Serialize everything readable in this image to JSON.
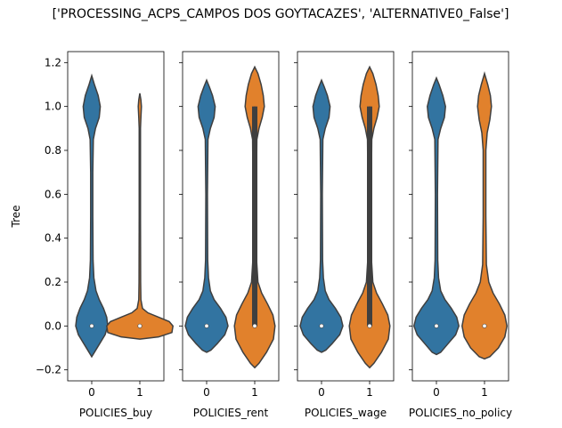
{
  "chart_data": {
    "type": "violin",
    "title": "['PROCESSING_ACPS_CAMPOS DOS GOYTACAZES', 'ALTERNATIVE0_False']",
    "ylabel": "Tree",
    "ylim": [
      -0.25,
      1.25
    ],
    "yticks": [
      -0.2,
      0.0,
      0.2,
      0.4,
      0.6,
      0.8,
      1.0,
      1.2
    ],
    "ytick_labels": [
      "−0.2",
      "0.0",
      "0.2",
      "0.4",
      "0.6",
      "0.8",
      "1.0",
      "1.2"
    ],
    "categories": [
      "0",
      "1"
    ],
    "colors": {
      "0": "#3274a1",
      "1": "#e1812c",
      "edge": "#3f3f3f"
    },
    "panels": [
      {
        "xlabel": "POLICIES_buy",
        "violins": [
          {
            "category": "0",
            "median": 0.0,
            "q1": 0.0,
            "q3": 0.0,
            "whisker_low": 0.0,
            "whisker_high": 0.0,
            "profile": [
              [
                -0.14,
                0.0
              ],
              [
                -0.12,
                0.05
              ],
              [
                -0.08,
                0.15
              ],
              [
                -0.04,
                0.25
              ],
              [
                0.0,
                0.3
              ],
              [
                0.04,
                0.28
              ],
              [
                0.08,
                0.22
              ],
              [
                0.12,
                0.14
              ],
              [
                0.16,
                0.08
              ],
              [
                0.22,
                0.04
              ],
              [
                0.3,
                0.025
              ],
              [
                0.5,
                0.02
              ],
              [
                0.7,
                0.02
              ],
              [
                0.85,
                0.03
              ],
              [
                0.9,
                0.07
              ],
              [
                0.95,
                0.14
              ],
              [
                1.0,
                0.16
              ],
              [
                1.05,
                0.12
              ],
              [
                1.1,
                0.05
              ],
              [
                1.14,
                0.0
              ]
            ]
          },
          {
            "category": "1",
            "median": 0.0,
            "q1": 0.0,
            "q3": 0.0,
            "whisker_low": 0.0,
            "whisker_high": 0.0,
            "profile": [
              [
                -0.06,
                0.0
              ],
              [
                -0.05,
                0.35
              ],
              [
                -0.03,
                0.6
              ],
              [
                0.0,
                0.62
              ],
              [
                0.02,
                0.55
              ],
              [
                0.04,
                0.35
              ],
              [
                0.06,
                0.15
              ],
              [
                0.08,
                0.05
              ],
              [
                0.12,
                0.02
              ],
              [
                0.2,
                0.015
              ],
              [
                0.5,
                0.012
              ],
              [
                0.9,
                0.012
              ],
              [
                0.95,
                0.02
              ],
              [
                1.0,
                0.03
              ],
              [
                1.03,
                0.02
              ],
              [
                1.06,
                0.0
              ]
            ]
          }
        ]
      },
      {
        "xlabel": "POLICIES_rent",
        "violins": [
          {
            "category": "0",
            "median": 0.0,
            "q1": 0.0,
            "q3": 0.0,
            "whisker_low": 0.0,
            "whisker_high": 0.0,
            "profile": [
              [
                -0.12,
                0.0
              ],
              [
                -0.11,
                0.08
              ],
              [
                -0.08,
                0.2
              ],
              [
                -0.04,
                0.34
              ],
              [
                0.0,
                0.4
              ],
              [
                0.04,
                0.36
              ],
              [
                0.08,
                0.26
              ],
              [
                0.12,
                0.14
              ],
              [
                0.16,
                0.07
              ],
              [
                0.22,
                0.035
              ],
              [
                0.3,
                0.02
              ],
              [
                0.6,
                0.015
              ],
              [
                0.85,
                0.025
              ],
              [
                0.9,
                0.07
              ],
              [
                0.95,
                0.14
              ],
              [
                1.0,
                0.16
              ],
              [
                1.05,
                0.11
              ],
              [
                1.09,
                0.05
              ],
              [
                1.12,
                0.0
              ]
            ]
          },
          {
            "category": "1",
            "median": 0.0,
            "q1": 0.0,
            "q3": 1.0,
            "whisker_low": 0.0,
            "whisker_high": 1.0,
            "profile": [
              [
                -0.19,
                0.0
              ],
              [
                -0.17,
                0.08
              ],
              [
                -0.12,
                0.22
              ],
              [
                -0.06,
                0.35
              ],
              [
                0.0,
                0.38
              ],
              [
                0.05,
                0.34
              ],
              [
                0.1,
                0.24
              ],
              [
                0.15,
                0.13
              ],
              [
                0.2,
                0.06
              ],
              [
                0.3,
                0.035
              ],
              [
                0.6,
                0.03
              ],
              [
                0.85,
                0.04
              ],
              [
                0.9,
                0.08
              ],
              [
                0.95,
                0.14
              ],
              [
                1.0,
                0.18
              ],
              [
                1.05,
                0.16
              ],
              [
                1.1,
                0.12
              ],
              [
                1.15,
                0.06
              ],
              [
                1.18,
                0.0
              ]
            ]
          }
        ]
      },
      {
        "xlabel": "POLICIES_wage",
        "violins": [
          {
            "category": "0",
            "median": 0.0,
            "q1": 0.0,
            "q3": 0.0,
            "whisker_low": 0.0,
            "whisker_high": 0.0,
            "profile": [
              [
                -0.12,
                0.0
              ],
              [
                -0.11,
                0.08
              ],
              [
                -0.08,
                0.2
              ],
              [
                -0.04,
                0.34
              ],
              [
                0.0,
                0.4
              ],
              [
                0.04,
                0.36
              ],
              [
                0.08,
                0.26
              ],
              [
                0.12,
                0.14
              ],
              [
                0.16,
                0.07
              ],
              [
                0.22,
                0.035
              ],
              [
                0.3,
                0.02
              ],
              [
                0.6,
                0.015
              ],
              [
                0.85,
                0.025
              ],
              [
                0.9,
                0.07
              ],
              [
                0.95,
                0.14
              ],
              [
                1.0,
                0.16
              ],
              [
                1.05,
                0.11
              ],
              [
                1.09,
                0.05
              ],
              [
                1.12,
                0.0
              ]
            ]
          },
          {
            "category": "1",
            "median": 0.0,
            "q1": 0.0,
            "q3": 1.0,
            "whisker_low": 0.0,
            "whisker_high": 1.0,
            "profile": [
              [
                -0.19,
                0.0
              ],
              [
                -0.17,
                0.08
              ],
              [
                -0.12,
                0.22
              ],
              [
                -0.06,
                0.35
              ],
              [
                0.0,
                0.38
              ],
              [
                0.05,
                0.34
              ],
              [
                0.1,
                0.24
              ],
              [
                0.15,
                0.13
              ],
              [
                0.2,
                0.06
              ],
              [
                0.3,
                0.035
              ],
              [
                0.6,
                0.03
              ],
              [
                0.85,
                0.04
              ],
              [
                0.9,
                0.08
              ],
              [
                0.95,
                0.14
              ],
              [
                1.0,
                0.18
              ],
              [
                1.05,
                0.16
              ],
              [
                1.1,
                0.12
              ],
              [
                1.15,
                0.06
              ],
              [
                1.18,
                0.0
              ]
            ]
          }
        ]
      },
      {
        "xlabel": "POLICIES_no_policy",
        "violins": [
          {
            "category": "0",
            "median": 0.0,
            "q1": 0.0,
            "q3": 0.0,
            "whisker_low": 0.0,
            "whisker_high": 0.0,
            "profile": [
              [
                -0.13,
                0.0
              ],
              [
                -0.12,
                0.08
              ],
              [
                -0.08,
                0.22
              ],
              [
                -0.04,
                0.36
              ],
              [
                0.0,
                0.42
              ],
              [
                0.04,
                0.38
              ],
              [
                0.08,
                0.28
              ],
              [
                0.12,
                0.16
              ],
              [
                0.16,
                0.08
              ],
              [
                0.22,
                0.04
              ],
              [
                0.3,
                0.025
              ],
              [
                0.6,
                0.02
              ],
              [
                0.85,
                0.03
              ],
              [
                0.9,
                0.08
              ],
              [
                0.95,
                0.15
              ],
              [
                1.0,
                0.17
              ],
              [
                1.05,
                0.12
              ],
              [
                1.1,
                0.05
              ],
              [
                1.13,
                0.0
              ]
            ]
          },
          {
            "category": "1",
            "median": 0.0,
            "q1": 0.0,
            "q3": 0.0,
            "whisker_low": 0.0,
            "whisker_high": 0.0,
            "profile": [
              [
                -0.15,
                0.0
              ],
              [
                -0.14,
                0.1
              ],
              [
                -0.1,
                0.26
              ],
              [
                -0.05,
                0.38
              ],
              [
                0.0,
                0.42
              ],
              [
                0.05,
                0.38
              ],
              [
                0.1,
                0.28
              ],
              [
                0.15,
                0.16
              ],
              [
                0.2,
                0.08
              ],
              [
                0.28,
                0.035
              ],
              [
                0.5,
                0.025
              ],
              [
                0.8,
                0.025
              ],
              [
                0.88,
                0.05
              ],
              [
                0.94,
                0.1
              ],
              [
                1.0,
                0.13
              ],
              [
                1.05,
                0.11
              ],
              [
                1.1,
                0.06
              ],
              [
                1.15,
                0.0
              ]
            ]
          }
        ]
      }
    ]
  }
}
